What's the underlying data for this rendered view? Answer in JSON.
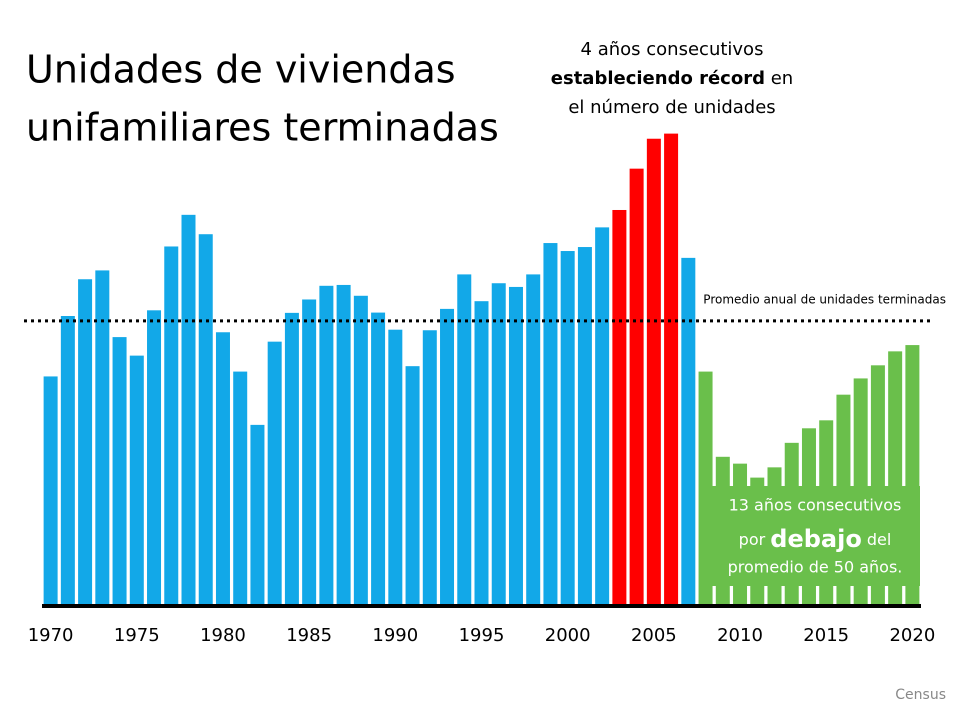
{
  "chart_data": {
    "type": "bar",
    "title": [
      "Unidades de viviendas",
      "unifamiliares terminadas"
    ],
    "categories": [
      1970,
      null,
      null,
      null,
      null,
      1975,
      null,
      null,
      null,
      null,
      1980,
      null,
      null,
      null,
      null,
      1985,
      null,
      null,
      null,
      null,
      1990,
      null,
      null,
      null,
      null,
      1995,
      null,
      null,
      null,
      null,
      2000,
      null,
      null,
      null,
      null,
      2005,
      null,
      null,
      null,
      null,
      2010,
      null,
      null,
      null,
      null,
      2015,
      null,
      null,
      null,
      null,
      2020
    ],
    "values": [
      802,
      1014,
      1143,
      1174,
      940,
      875,
      1034,
      1258,
      1369,
      1301,
      957,
      819,
      632,
      924,
      1025,
      1072,
      1120,
      1123,
      1085,
      1026,
      966,
      838,
      964,
      1039,
      1160,
      1066,
      1129,
      1116,
      1160,
      1270,
      1242,
      1256,
      1325,
      1386,
      1531,
      1636,
      1654,
      1218,
      819,
      520,
      496,
      447,
      483,
      569,
      620,
      648,
      738,
      795,
      841,
      890,
      912
    ],
    "colors": [
      "#12a8e8",
      "#12a8e8",
      "#12a8e8",
      "#12a8e8",
      "#12a8e8",
      "#12a8e8",
      "#12a8e8",
      "#12a8e8",
      "#12a8e8",
      "#12a8e8",
      "#12a8e8",
      "#12a8e8",
      "#12a8e8",
      "#12a8e8",
      "#12a8e8",
      "#12a8e8",
      "#12a8e8",
      "#12a8e8",
      "#12a8e8",
      "#12a8e8",
      "#12a8e8",
      "#12a8e8",
      "#12a8e8",
      "#12a8e8",
      "#12a8e8",
      "#12a8e8",
      "#12a8e8",
      "#12a8e8",
      "#12a8e8",
      "#12a8e8",
      "#12a8e8",
      "#12a8e8",
      "#12a8e8",
      "#ff0000",
      "#ff0000",
      "#ff0000",
      "#ff0000",
      "#12a8e8",
      "#6abf4b",
      "#6abf4b",
      "#6abf4b",
      "#6abf4b",
      "#6abf4b",
      "#6abf4b",
      "#6abf4b",
      "#6abf4b",
      "#6abf4b",
      "#6abf4b",
      "#6abf4b",
      "#6abf4b",
      "#6abf4b"
    ],
    "ylim": [
      0,
      2000
    ],
    "reference_line": {
      "value": 997,
      "label": "Promedio anual de unidades terminadas"
    },
    "annotation_record": [
      "4 años consecutivos",
      "estableciendo récord",
      " en",
      "el número de unidades"
    ],
    "annotation_below": [
      "13 años consecutivos",
      "por ",
      "debajo",
      " del",
      "promedio de 50 años."
    ],
    "source": "Census"
  }
}
